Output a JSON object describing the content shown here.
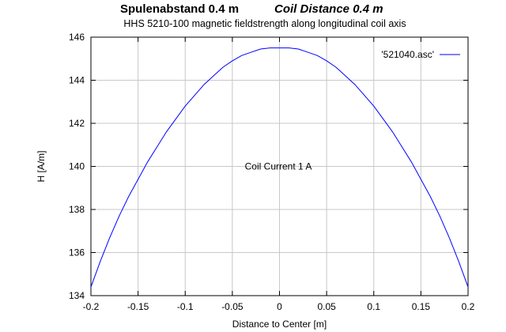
{
  "header": {
    "title_de": "Spulenabstand 0.4 m",
    "title_en": "Coil Distance 0.4 m",
    "subtitle": "HHS 5210-100 magnetic fieldstrength along longitudinal coil axis"
  },
  "colors": {
    "series": "#0000ff",
    "grid": "#c8c8c8",
    "axis": "#000000"
  },
  "chart_data": {
    "type": "line",
    "title": "Spulenabstand 0.4 m    Coil Distance 0.4 m",
    "subtitle": "HHS 5210-100 magnetic fieldstrength along longitudinal coil axis",
    "xlabel": "Distance to Center [m]",
    "ylabel": "H [A/m]",
    "xlim": [
      -0.2,
      0.2
    ],
    "ylim": [
      134,
      146
    ],
    "xticks": [
      -0.2,
      -0.15,
      -0.1,
      -0.05,
      0,
      0.05,
      0.1,
      0.15,
      0.2
    ],
    "xtick_labels": [
      "-0.2",
      "-0.15",
      "-0.1",
      "-0.05",
      "0",
      "0.05",
      "0.1",
      "0.15",
      "0.2"
    ],
    "yticks": [
      134,
      136,
      138,
      140,
      142,
      144,
      146
    ],
    "ytick_labels": [
      "134",
      "136",
      "138",
      "140",
      "142",
      "144",
      "146"
    ],
    "grid": true,
    "legend_position": "top-right",
    "annotation": "Coil Current 1 A",
    "series": [
      {
        "name": "'521040.asc'",
        "x": [
          -0.2,
          -0.19,
          -0.18,
          -0.17,
          -0.16,
          -0.15,
          -0.14,
          -0.13,
          -0.12,
          -0.11,
          -0.1,
          -0.09,
          -0.08,
          -0.07,
          -0.06,
          -0.05,
          -0.04,
          -0.03,
          -0.02,
          -0.01,
          0,
          0.01,
          0.02,
          0.03,
          0.04,
          0.05,
          0.06,
          0.07,
          0.08,
          0.09,
          0.1,
          0.11,
          0.12,
          0.13,
          0.14,
          0.15,
          0.16,
          0.17,
          0.18,
          0.19,
          0.2
        ],
        "y": [
          134.4,
          135.6,
          136.7,
          137.7,
          138.6,
          139.4,
          140.2,
          140.9,
          141.6,
          142.2,
          142.8,
          143.3,
          143.8,
          144.2,
          144.6,
          144.9,
          145.15,
          145.3,
          145.45,
          145.5,
          145.5,
          145.5,
          145.45,
          145.3,
          145.15,
          144.9,
          144.6,
          144.2,
          143.8,
          143.3,
          142.8,
          142.2,
          141.6,
          140.9,
          140.2,
          139.4,
          138.6,
          137.7,
          136.7,
          135.6,
          134.4
        ]
      }
    ]
  }
}
